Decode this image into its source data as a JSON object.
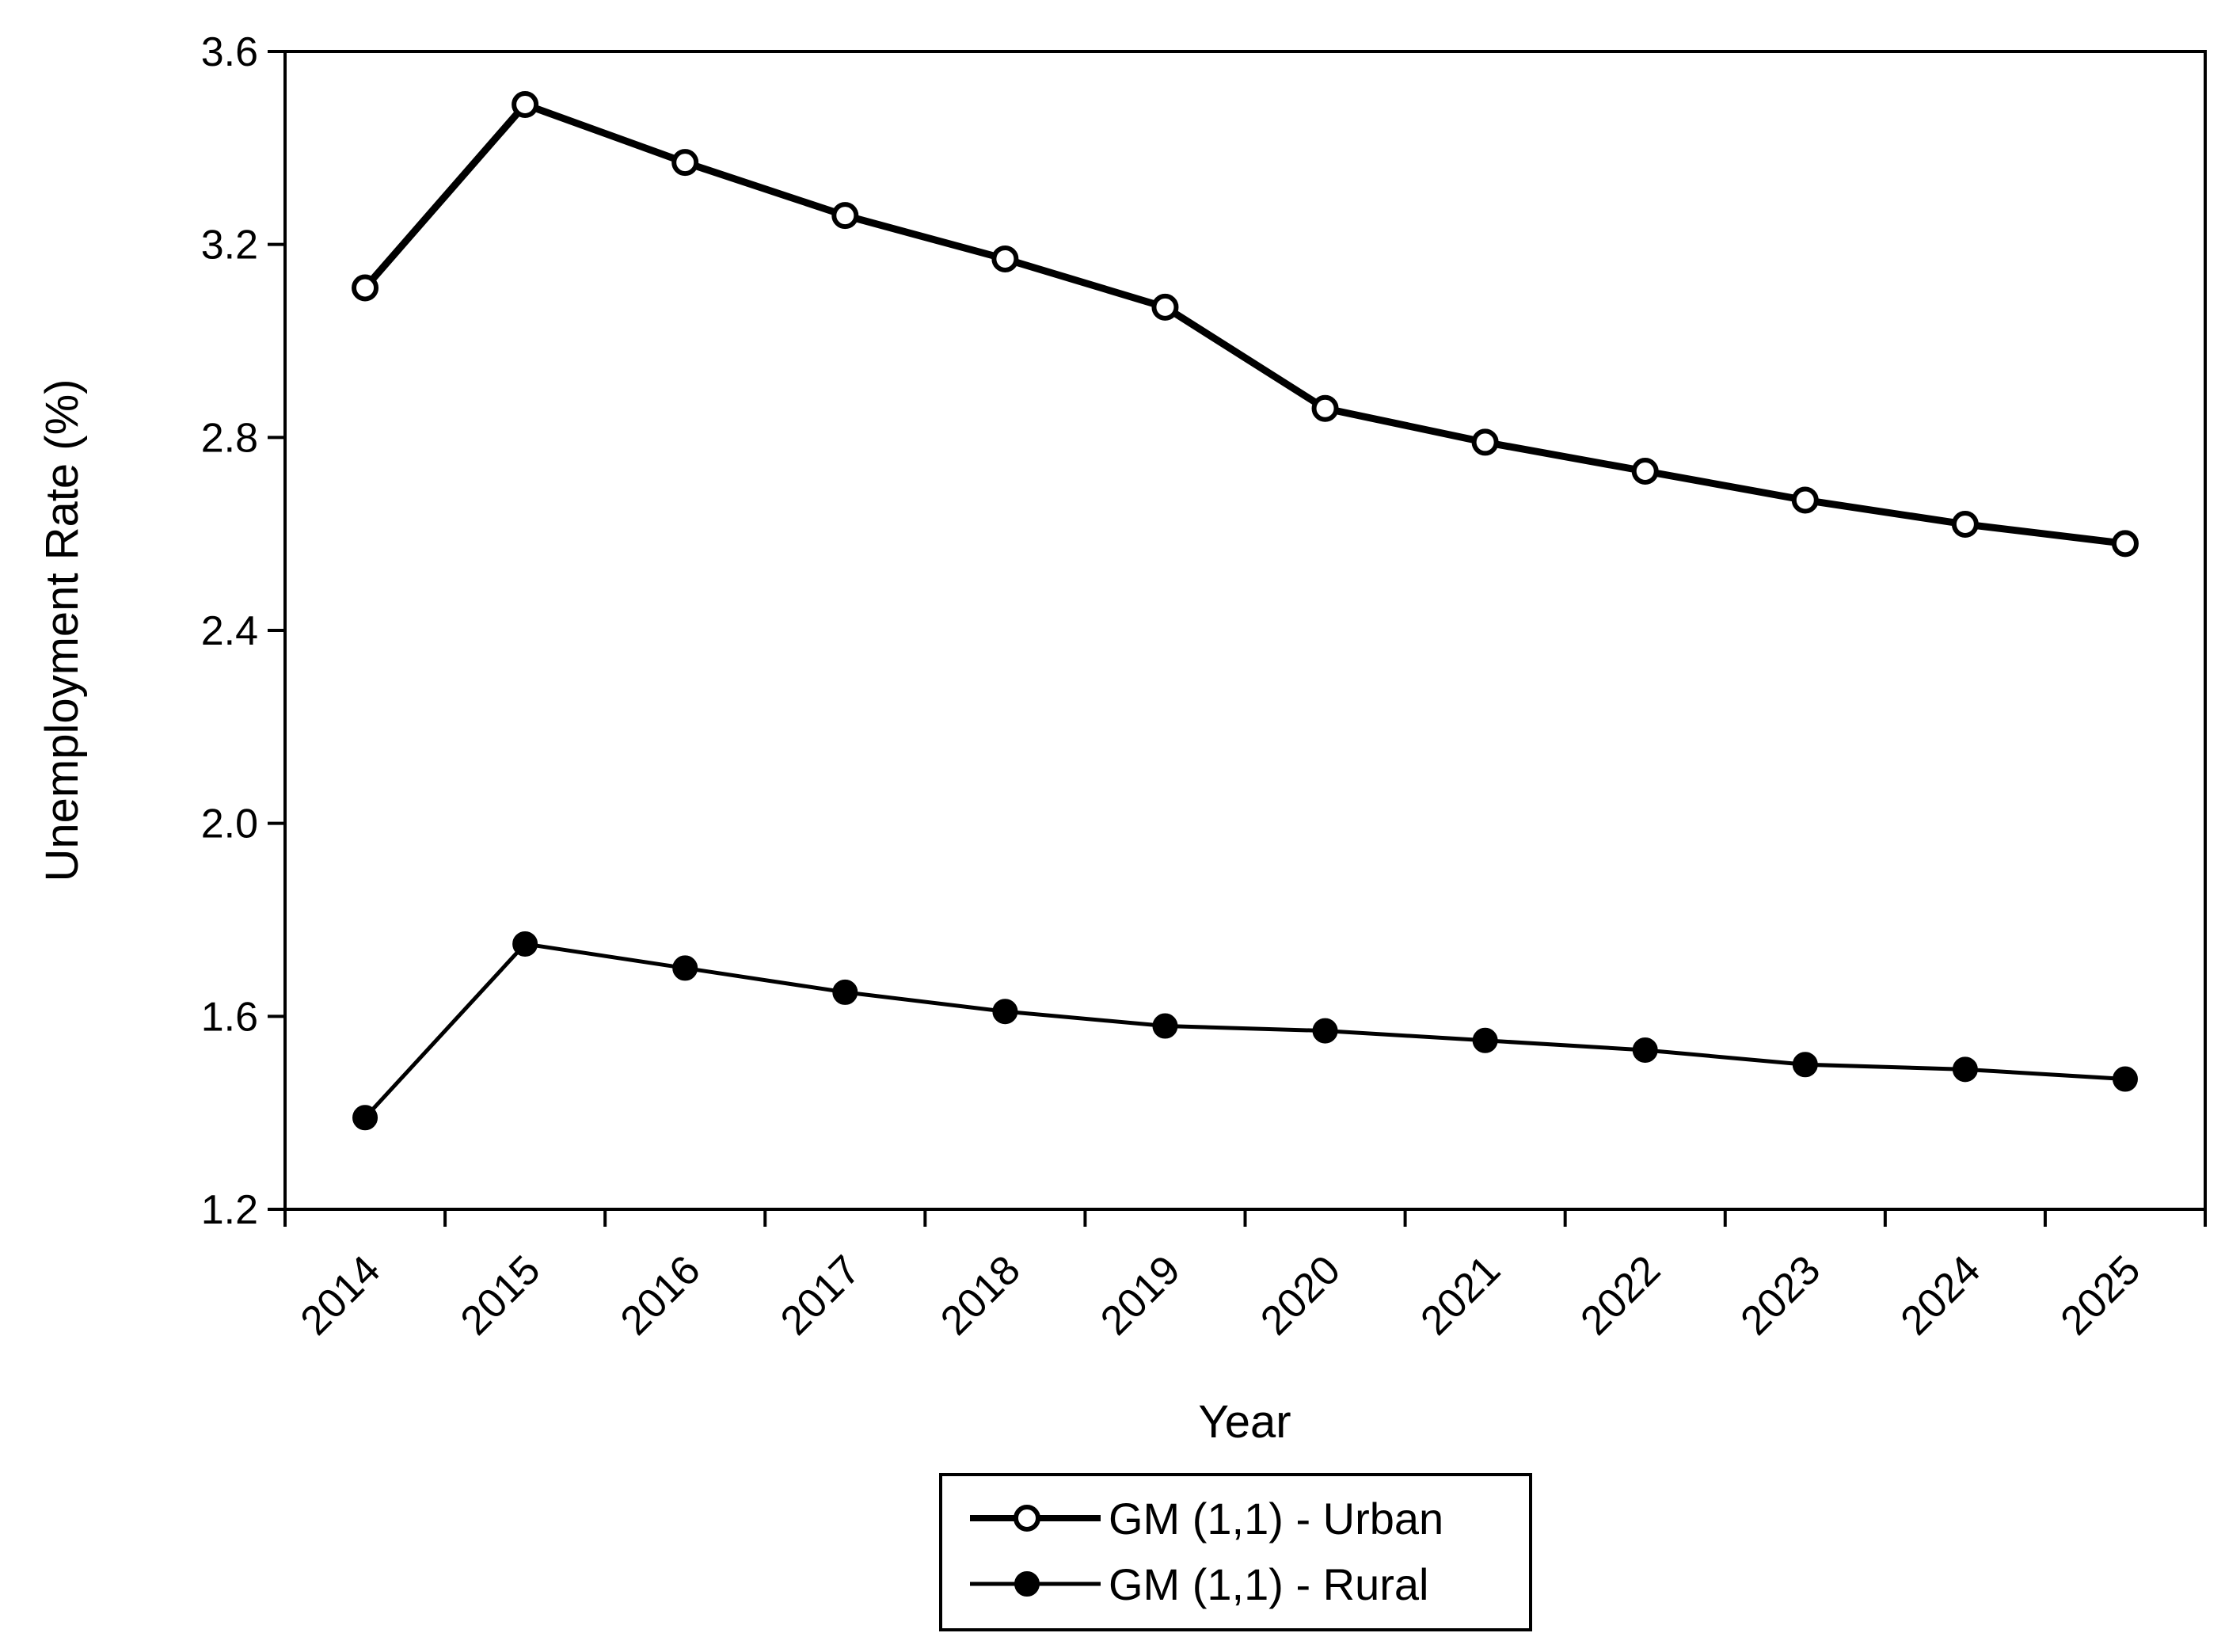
{
  "chart_data": {
    "type": "line",
    "xlabel": "Year",
    "ylabel": "Unemployment Rate (%)",
    "categories": [
      "2014",
      "2015",
      "2016",
      "2017",
      "2018",
      "2019",
      "2020",
      "2021",
      "2022",
      "2023",
      "2024",
      "2025"
    ],
    "ylim": [
      1.2,
      3.6
    ],
    "yticks": [
      "1.2",
      "1.6",
      "2.0",
      "2.4",
      "2.8",
      "3.2",
      "3.6"
    ],
    "grid": false,
    "legend_position": "bottom-center",
    "series": [
      {
        "name": "GM (1,1) - Urban",
        "marker": "open-circle",
        "color": "#000000",
        "values": [
          3.11,
          3.49,
          3.37,
          3.26,
          3.17,
          3.07,
          2.86,
          2.79,
          2.73,
          2.67,
          2.62,
          2.58
        ]
      },
      {
        "name": "GM (1,1) - Rural",
        "marker": "filled-circle",
        "color": "#000000",
        "values": [
          1.39,
          1.75,
          1.7,
          1.65,
          1.61,
          1.58,
          1.57,
          1.55,
          1.53,
          1.5,
          1.49,
          1.47
        ]
      }
    ]
  }
}
